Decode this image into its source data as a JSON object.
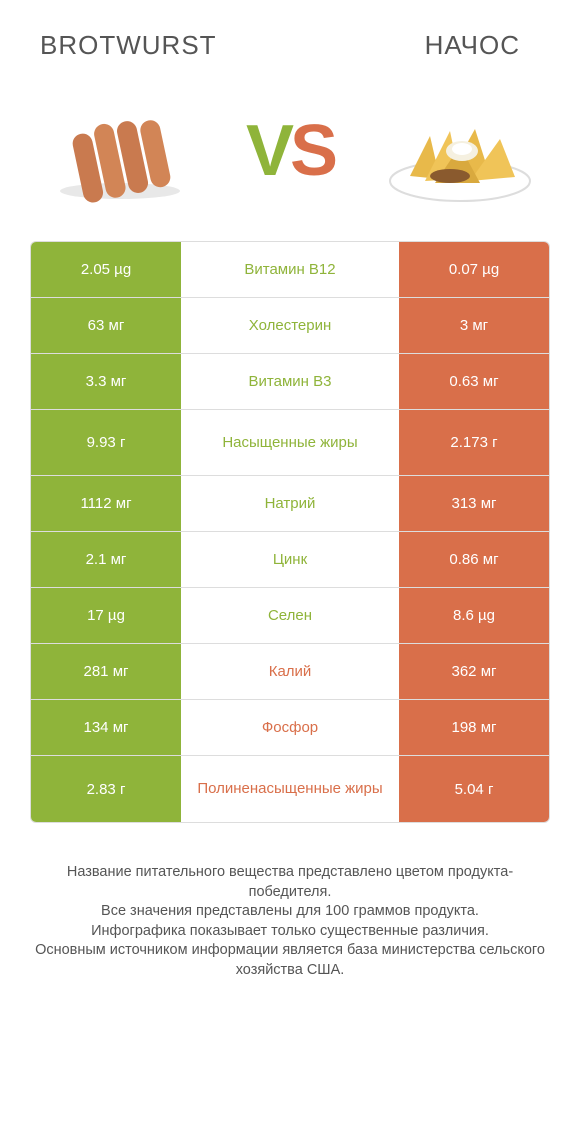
{
  "titles": {
    "left": "BROTWURST",
    "right": "НАЧОС"
  },
  "vs": {
    "v": "V",
    "s": "S"
  },
  "colors": {
    "green": "#8fb43a",
    "orange": "#d96f4a",
    "mid_green": "#8fb43a",
    "mid_orange": "#d96f4a",
    "border": "#dddddd",
    "text": "#555555"
  },
  "rows": [
    {
      "left": "2.05 µg",
      "mid": "Витамин B12",
      "right": "0.07 µg",
      "winner": "left",
      "tall": false
    },
    {
      "left": "63 мг",
      "mid": "Холестерин",
      "right": "3 мг",
      "winner": "left",
      "tall": false
    },
    {
      "left": "3.3 мг",
      "mid": "Витамин B3",
      "right": "0.63 мг",
      "winner": "left",
      "tall": false
    },
    {
      "left": "9.93 г",
      "mid": "Насыщенные жиры",
      "right": "2.173 г",
      "winner": "left",
      "tall": true
    },
    {
      "left": "1112 мг",
      "mid": "Натрий",
      "right": "313 мг",
      "winner": "left",
      "tall": false
    },
    {
      "left": "2.1 мг",
      "mid": "Цинк",
      "right": "0.86 мг",
      "winner": "left",
      "tall": false
    },
    {
      "left": "17 µg",
      "mid": "Селен",
      "right": "8.6 µg",
      "winner": "left",
      "tall": false
    },
    {
      "left": "281 мг",
      "mid": "Калий",
      "right": "362 мг",
      "winner": "right",
      "tall": false
    },
    {
      "left": "134 мг",
      "mid": "Фосфор",
      "right": "198 мг",
      "winner": "right",
      "tall": false
    },
    {
      "left": "2.83 г",
      "mid": "Полиненасыщенные жиры",
      "right": "5.04 г",
      "winner": "right",
      "tall": true
    }
  ],
  "footer": "Название питательного вещества представлено цветом продукта-победителя.\nВсе значения представлены для 100 граммов продукта.\nИнфографика показывает только существенные различия.\nОсновным источником информации является база министерства сельского хозяйства США."
}
